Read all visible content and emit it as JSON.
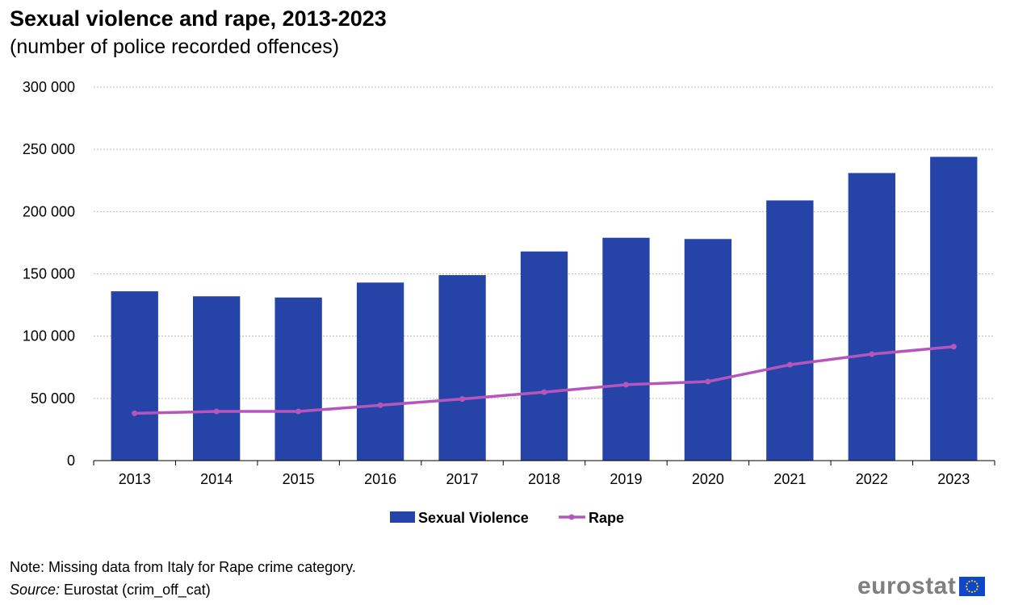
{
  "title": "Sexual violence and rape, 2013-2023",
  "subtitle": "(number of police recorded offences)",
  "note": "Note: Missing data from Italy for Rape crime category.",
  "source_label": "Source:",
  "source_text": " Eurostat (crim_off_cat)",
  "logo_text": "eurostat",
  "colors": {
    "bar": "#2644A7",
    "line": "#B656BD",
    "grid": "#bdbdbd",
    "axis": "#000000",
    "flag_blue": "#0E47CB",
    "flag_star": "#FFCC00"
  },
  "chart_data": {
    "type": "bar",
    "categories": [
      "2013",
      "2014",
      "2015",
      "2016",
      "2017",
      "2018",
      "2019",
      "2020",
      "2021",
      "2022",
      "2023"
    ],
    "ylim": [
      0,
      300000
    ],
    "yticks": [
      0,
      50000,
      100000,
      150000,
      200000,
      250000,
      300000
    ],
    "ytick_labels": [
      "0",
      "50 000",
      "100 000",
      "150 000",
      "200 000",
      "250 000",
      "300 000"
    ],
    "grid": true,
    "legend_position": "bottom-center",
    "series": [
      {
        "name": "Sexual Violence",
        "kind": "bar",
        "color": "#2644A7",
        "values": [
          136000,
          132000,
          131000,
          143000,
          149000,
          168000,
          179000,
          178000,
          209000,
          231000,
          244000
        ]
      },
      {
        "name": "Rape",
        "kind": "line",
        "color": "#B656BD",
        "values": [
          38000,
          39500,
          39500,
          44500,
          49500,
          55000,
          61000,
          63500,
          77000,
          85500,
          91500
        ]
      }
    ]
  }
}
